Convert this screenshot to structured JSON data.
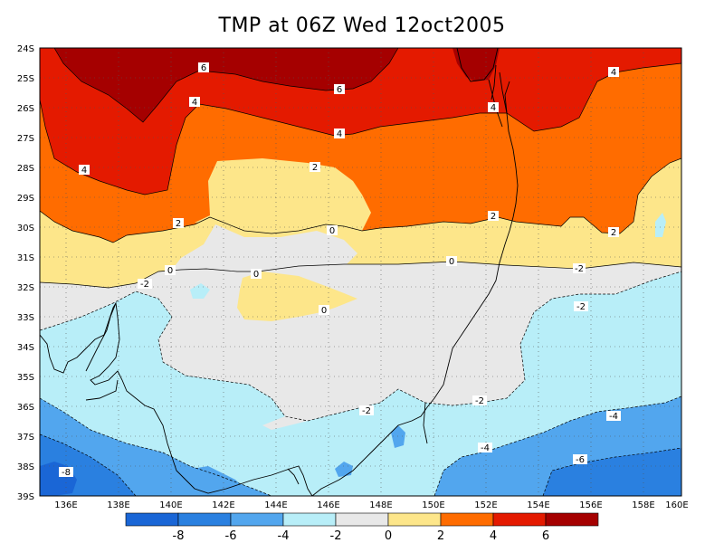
{
  "title": "TMP at 06Z Wed 12oct2005",
  "map": {
    "lat_ticks": [
      "24S",
      "25S",
      "26S",
      "27S",
      "28S",
      "29S",
      "30S",
      "31S",
      "32S",
      "33S",
      "34S",
      "35S",
      "36S",
      "37S",
      "38S",
      "39S"
    ],
    "lon_ticks": [
      "136E",
      "138E",
      "140E",
      "142E",
      "144E",
      "146E",
      "148E",
      "150E",
      "152E",
      "154E",
      "156E",
      "158E",
      "160E"
    ],
    "contour_labels": [
      "6",
      "6",
      "4",
      "4",
      "4",
      "4",
      "4",
      "2",
      "2",
      "2",
      "2",
      "0",
      "0",
      "0",
      "0",
      "0",
      "-2",
      "-2",
      "-2",
      "-2",
      "-2",
      "-4",
      "-4",
      "-6",
      "-8"
    ]
  },
  "colorbar": {
    "labels": [
      "-8",
      "-6",
      "-4",
      "-2",
      "0",
      "2",
      "4",
      "6"
    ],
    "colors": [
      "#1a66d6",
      "#2a80e0",
      "#52a6ee",
      "#b8eef8",
      "#e8e8e8",
      "#fde68a",
      "#ff6c00",
      "#e41a00",
      "#a50000"
    ]
  },
  "palette": {
    "t6": "#a50000",
    "t4": "#e41a00",
    "t2": "#ff6c00",
    "t0": "#fde68a",
    "tm2": "#e8e8e8",
    "tm4": "#b8eef8",
    "tm6": "#52a6ee",
    "tm8": "#2a80e0",
    "tm10": "#1a66d6"
  }
}
